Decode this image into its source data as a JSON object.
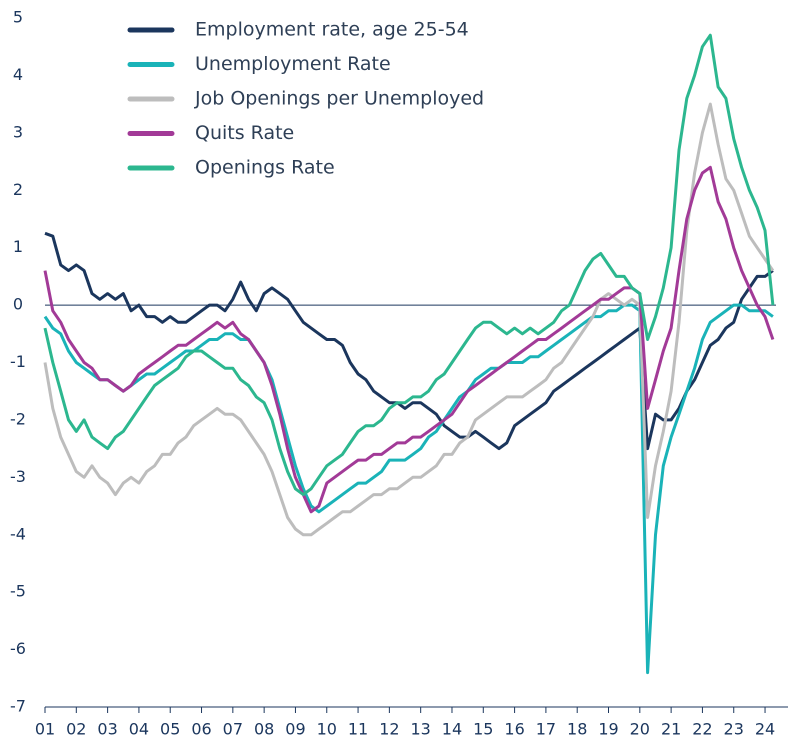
{
  "chart_data": {
    "type": "line",
    "x": [
      2001,
      2001.25,
      2001.5,
      2001.75,
      2002,
      2002.25,
      2002.5,
      2002.75,
      2003,
      2003.25,
      2003.5,
      2003.75,
      2004,
      2004.25,
      2004.5,
      2004.75,
      2005,
      2005.25,
      2005.5,
      2005.75,
      2006,
      2006.25,
      2006.5,
      2006.75,
      2007,
      2007.25,
      2007.5,
      2007.75,
      2008,
      2008.25,
      2008.5,
      2008.75,
      2009,
      2009.25,
      2009.5,
      2009.75,
      2010,
      2010.25,
      2010.5,
      2010.75,
      2011,
      2011.25,
      2011.5,
      2011.75,
      2012,
      2012.25,
      2012.5,
      2012.75,
      2013,
      2013.25,
      2013.5,
      2013.75,
      2014,
      2014.25,
      2014.5,
      2014.75,
      2015,
      2015.25,
      2015.5,
      2015.75,
      2016,
      2016.25,
      2016.5,
      2016.75,
      2017,
      2017.25,
      2017.5,
      2017.75,
      2018,
      2018.25,
      2018.5,
      2018.75,
      2019,
      2019.25,
      2019.5,
      2019.75,
      2020,
      2020.25,
      2020.5,
      2020.75,
      2021,
      2021.25,
      2021.5,
      2021.75,
      2022,
      2022.25,
      2022.5,
      2022.75,
      2023,
      2023.25,
      2023.5,
      2023.75,
      2024,
      2024.25
    ],
    "series": [
      {
        "name": "Employment rate, age 25-54",
        "color": "#1b365d",
        "values": [
          1.25,
          1.2,
          0.7,
          0.6,
          0.7,
          0.6,
          0.2,
          0.1,
          0.2,
          0.1,
          0.2,
          -0.1,
          0,
          -0.2,
          -0.2,
          -0.3,
          -0.2,
          -0.3,
          -0.3,
          -0.2,
          -0.1,
          0,
          0,
          -0.1,
          0.1,
          0.4,
          0.1,
          -0.1,
          0.2,
          0.3,
          0.2,
          0.1,
          -0.1,
          -0.3,
          -0.4,
          -0.5,
          -0.6,
          -0.6,
          -0.7,
          -1.0,
          -1.2,
          -1.3,
          -1.5,
          -1.6,
          -1.7,
          -1.7,
          -1.8,
          -1.7,
          -1.7,
          -1.8,
          -1.9,
          -2.1,
          -2.2,
          -2.3,
          -2.3,
          -2.2,
          -2.3,
          -2.4,
          -2.5,
          -2.4,
          -2.1,
          -2.0,
          -1.9,
          -1.8,
          -1.7,
          -1.5,
          -1.4,
          -1.3,
          -1.2,
          -1.1,
          -1.0,
          -0.9,
          -0.8,
          -0.7,
          -0.6,
          -0.5,
          -0.4,
          -2.5,
          -1.9,
          -2.0,
          -2.0,
          -1.8,
          -1.5,
          -1.3,
          -1.0,
          -0.7,
          -0.6,
          -0.4,
          -0.3,
          0.1,
          0.3,
          0.5,
          0.5,
          0.6
        ]
      },
      {
        "name": "Unemployment Rate",
        "color": "#1ab3b8",
        "values": [
          -0.2,
          -0.4,
          -0.5,
          -0.8,
          -1.0,
          -1.1,
          -1.2,
          -1.3,
          -1.3,
          -1.4,
          -1.5,
          -1.4,
          -1.3,
          -1.2,
          -1.2,
          -1.1,
          -1.0,
          -0.9,
          -0.8,
          -0.8,
          -0.7,
          -0.6,
          -0.6,
          -0.5,
          -0.5,
          -0.6,
          -0.6,
          -0.8,
          -1.0,
          -1.3,
          -1.8,
          -2.3,
          -2.8,
          -3.2,
          -3.5,
          -3.6,
          -3.5,
          -3.4,
          -3.3,
          -3.2,
          -3.1,
          -3.1,
          -3.0,
          -2.9,
          -2.7,
          -2.7,
          -2.7,
          -2.6,
          -2.5,
          -2.3,
          -2.2,
          -2.0,
          -1.8,
          -1.6,
          -1.5,
          -1.3,
          -1.2,
          -1.1,
          -1.1,
          -1.0,
          -1.0,
          -1.0,
          -0.9,
          -0.9,
          -0.8,
          -0.7,
          -0.6,
          -0.5,
          -0.4,
          -0.3,
          -0.2,
          -0.2,
          -0.1,
          -0.1,
          0,
          0,
          -0.1,
          -6.4,
          -4.0,
          -2.8,
          -2.3,
          -1.9,
          -1.5,
          -1.1,
          -0.6,
          -0.3,
          -0.2,
          -0.1,
          0,
          0,
          -0.1,
          -0.1,
          -0.1,
          -0.2
        ]
      },
      {
        "name": "Job Openings per Unemployed",
        "color": "#bdbdbd",
        "values": [
          -1.0,
          -1.8,
          -2.3,
          -2.6,
          -2.9,
          -3.0,
          -2.8,
          -3.0,
          -3.1,
          -3.3,
          -3.1,
          -3.0,
          -3.1,
          -2.9,
          -2.8,
          -2.6,
          -2.6,
          -2.4,
          -2.3,
          -2.1,
          -2.0,
          -1.9,
          -1.8,
          -1.9,
          -1.9,
          -2.0,
          -2.2,
          -2.4,
          -2.6,
          -2.9,
          -3.3,
          -3.7,
          -3.9,
          -4.0,
          -4.0,
          -3.9,
          -3.8,
          -3.7,
          -3.6,
          -3.6,
          -3.5,
          -3.4,
          -3.3,
          -3.3,
          -3.2,
          -3.2,
          -3.1,
          -3.0,
          -3.0,
          -2.9,
          -2.8,
          -2.6,
          -2.6,
          -2.4,
          -2.3,
          -2.0,
          -1.9,
          -1.8,
          -1.7,
          -1.6,
          -1.6,
          -1.6,
          -1.5,
          -1.4,
          -1.3,
          -1.1,
          -1.0,
          -0.8,
          -0.6,
          -0.4,
          -0.2,
          0.1,
          0.2,
          0.1,
          0,
          0.1,
          0,
          -3.7,
          -2.8,
          -2.2,
          -1.5,
          -0.3,
          1.3,
          2.3,
          3.0,
          3.5,
          2.8,
          2.2,
          2.0,
          1.6,
          1.2,
          1.0,
          0.8,
          0.6
        ]
      },
      {
        "name": "Quits Rate",
        "color": "#a23a97",
        "values": [
          0.6,
          -0.1,
          -0.3,
          -0.6,
          -0.8,
          -1.0,
          -1.1,
          -1.3,
          -1.3,
          -1.4,
          -1.5,
          -1.4,
          -1.2,
          -1.1,
          -1.0,
          -0.9,
          -0.8,
          -0.7,
          -0.7,
          -0.6,
          -0.5,
          -0.4,
          -0.3,
          -0.4,
          -0.3,
          -0.5,
          -0.6,
          -0.8,
          -1.0,
          -1.4,
          -1.9,
          -2.5,
          -3.0,
          -3.3,
          -3.6,
          -3.5,
          -3.1,
          -3.0,
          -2.9,
          -2.8,
          -2.7,
          -2.7,
          -2.6,
          -2.6,
          -2.5,
          -2.4,
          -2.4,
          -2.3,
          -2.3,
          -2.2,
          -2.1,
          -2.0,
          -1.9,
          -1.7,
          -1.5,
          -1.4,
          -1.3,
          -1.2,
          -1.1,
          -1.0,
          -0.9,
          -0.8,
          -0.7,
          -0.6,
          -0.6,
          -0.5,
          -0.4,
          -0.3,
          -0.2,
          -0.1,
          0,
          0.1,
          0.1,
          0.2,
          0.3,
          0.3,
          0.2,
          -1.8,
          -1.3,
          -0.8,
          -0.4,
          0.6,
          1.5,
          2.0,
          2.3,
          2.4,
          1.8,
          1.5,
          1.0,
          0.6,
          0.3,
          0,
          -0.2,
          -0.6
        ]
      },
      {
        "name": "Openings Rate",
        "color": "#2cb78f",
        "values": [
          -0.4,
          -1.0,
          -1.5,
          -2.0,
          -2.2,
          -2.0,
          -2.3,
          -2.4,
          -2.5,
          -2.3,
          -2.2,
          -2.0,
          -1.8,
          -1.6,
          -1.4,
          -1.3,
          -1.2,
          -1.1,
          -0.9,
          -0.8,
          -0.8,
          -0.9,
          -1.0,
          -1.1,
          -1.1,
          -1.3,
          -1.4,
          -1.6,
          -1.7,
          -2.0,
          -2.5,
          -2.9,
          -3.2,
          -3.3,
          -3.2,
          -3.0,
          -2.8,
          -2.7,
          -2.6,
          -2.4,
          -2.2,
          -2.1,
          -2.1,
          -2.0,
          -1.8,
          -1.7,
          -1.7,
          -1.6,
          -1.6,
          -1.5,
          -1.3,
          -1.2,
          -1.0,
          -0.8,
          -0.6,
          -0.4,
          -0.3,
          -0.3,
          -0.4,
          -0.5,
          -0.4,
          -0.5,
          -0.4,
          -0.5,
          -0.4,
          -0.3,
          -0.1,
          0,
          0.3,
          0.6,
          0.8,
          0.9,
          0.7,
          0.5,
          0.5,
          0.3,
          0.2,
          -0.6,
          -0.2,
          0.3,
          1.0,
          2.7,
          3.6,
          4.0,
          4.5,
          4.7,
          3.8,
          3.6,
          2.9,
          2.4,
          2.0,
          1.7,
          1.3,
          0
        ]
      }
    ],
    "xlim": [
      2001,
      2024.35
    ],
    "xticks": [
      {
        "value": 2001,
        "label": "01"
      },
      {
        "value": 2002,
        "label": "02"
      },
      {
        "value": 2003,
        "label": "03"
      },
      {
        "value": 2004,
        "label": "04"
      },
      {
        "value": 2005,
        "label": "05"
      },
      {
        "value": 2006,
        "label": "06"
      },
      {
        "value": 2007,
        "label": "07"
      },
      {
        "value": 2008,
        "label": "08"
      },
      {
        "value": 2009,
        "label": "09"
      },
      {
        "value": 2010,
        "label": "10"
      },
      {
        "value": 2011,
        "label": "11"
      },
      {
        "value": 2012,
        "label": "12"
      },
      {
        "value": 2013,
        "label": "13"
      },
      {
        "value": 2014,
        "label": "14"
      },
      {
        "value": 2015,
        "label": "15"
      },
      {
        "value": 2016,
        "label": "16"
      },
      {
        "value": 2017,
        "label": "17"
      },
      {
        "value": 2018,
        "label": "18"
      },
      {
        "value": 2019,
        "label": "19"
      },
      {
        "value": 2020,
        "label": "20"
      },
      {
        "value": 2021,
        "label": "21"
      },
      {
        "value": 2022,
        "label": "22"
      },
      {
        "value": 2023,
        "label": "23"
      },
      {
        "value": 2024,
        "label": "24"
      }
    ],
    "ylim": [
      -7,
      5
    ],
    "yticks": [
      -7,
      -6,
      -5,
      -4,
      -3,
      -2,
      -1,
      0,
      1,
      2,
      3,
      4,
      5
    ],
    "legend": "top-left"
  }
}
